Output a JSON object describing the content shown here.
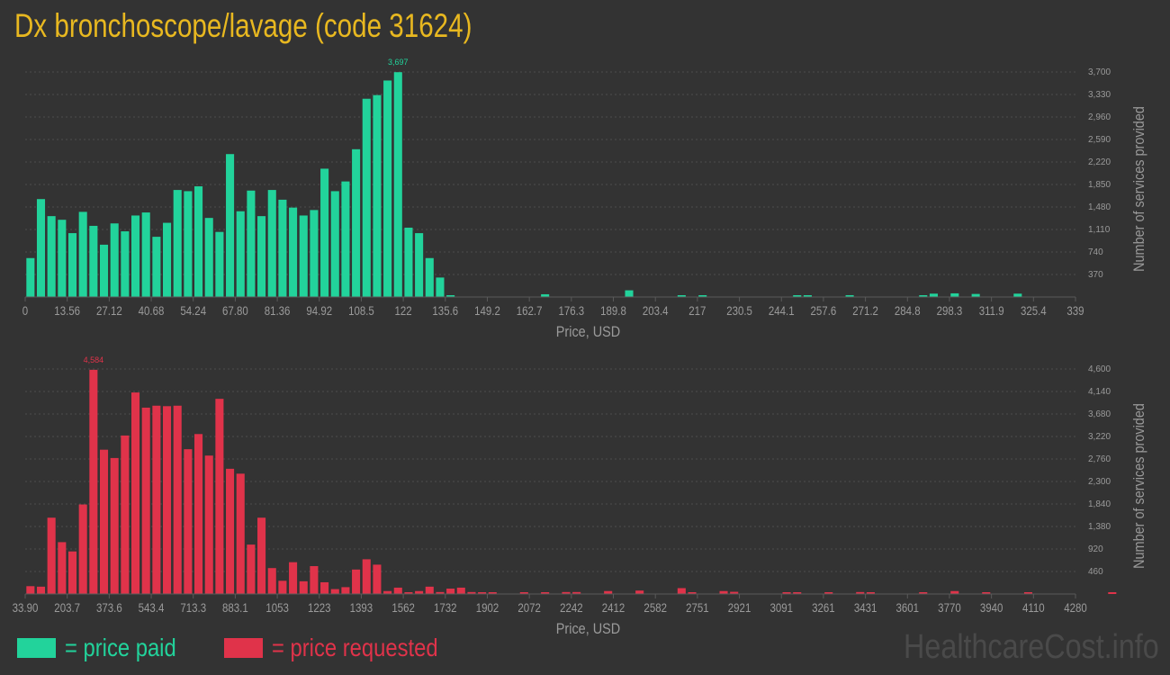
{
  "title": "Dx bronchoscope/lavage (code 31624)",
  "colors": {
    "paid": "#22d39b",
    "requested": "#e0334a",
    "title": "#e8b820",
    "axis_text": "#9a9a9a"
  },
  "legend": {
    "paid_label": "= price paid",
    "requested_label": "= price requested"
  },
  "watermark": "HealthcareCost.info",
  "chart_data": [
    {
      "type": "bar",
      "series_name": "price paid",
      "xlabel": "Price, USD",
      "ylabel": "Number of services provided",
      "xlim": [
        0,
        339
      ],
      "ylim": [
        0,
        3700
      ],
      "x_ticks": [
        "0",
        "13.56",
        "27.12",
        "40.68",
        "54.24",
        "67.80",
        "81.36",
        "94.92",
        "108.5",
        "122",
        "135.6",
        "149.2",
        "162.7",
        "176.3",
        "189.8",
        "203.4",
        "217",
        "230.5",
        "244.1",
        "257.6",
        "271.2",
        "284.8",
        "298.3",
        "311.9",
        "325.4",
        "339"
      ],
      "y_ticks": [
        "370",
        "740",
        "1,110",
        "1,480",
        "1,850",
        "2,220",
        "2,590",
        "2,960",
        "3,330",
        "3,700"
      ],
      "y_tick_values": [
        370,
        740,
        1110,
        1480,
        1850,
        2220,
        2590,
        2960,
        3330,
        3700
      ],
      "peak_label": "3,697",
      "grid": true,
      "bin_width": 3.39,
      "bins": [
        [
          0,
          640
        ],
        [
          1,
          1610
        ],
        [
          2,
          1330
        ],
        [
          3,
          1270
        ],
        [
          4,
          1050
        ],
        [
          5,
          1400
        ],
        [
          6,
          1170
        ],
        [
          7,
          860
        ],
        [
          8,
          1210
        ],
        [
          9,
          1080
        ],
        [
          10,
          1340
        ],
        [
          11,
          1390
        ],
        [
          12,
          990
        ],
        [
          13,
          1220
        ],
        [
          14,
          1760
        ],
        [
          15,
          1740
        ],
        [
          16,
          1820
        ],
        [
          17,
          1300
        ],
        [
          18,
          1070
        ],
        [
          19,
          2350
        ],
        [
          20,
          1410
        ],
        [
          21,
          1750
        ],
        [
          22,
          1330
        ],
        [
          23,
          1760
        ],
        [
          24,
          1600
        ],
        [
          25,
          1470
        ],
        [
          26,
          1340
        ],
        [
          27,
          1430
        ],
        [
          28,
          2110
        ],
        [
          29,
          1740
        ],
        [
          30,
          1900
        ],
        [
          31,
          2430
        ],
        [
          32,
          3260
        ],
        [
          33,
          3320
        ],
        [
          34,
          3560
        ],
        [
          35,
          3697
        ],
        [
          36,
          1140
        ],
        [
          37,
          1050
        ],
        [
          38,
          640
        ],
        [
          39,
          320
        ],
        [
          40,
          18
        ],
        [
          49,
          45
        ],
        [
          57,
          110
        ],
        [
          62,
          18
        ],
        [
          64,
          28
        ],
        [
          73,
          12
        ],
        [
          74,
          22
        ],
        [
          78,
          30
        ],
        [
          85,
          12
        ],
        [
          86,
          55
        ],
        [
          88,
          60
        ],
        [
          90,
          50
        ],
        [
          94,
          55
        ]
      ]
    },
    {
      "type": "bar",
      "series_name": "price requested",
      "xlabel": "Price, USD",
      "ylabel": "Number of services provided",
      "xlim": [
        33.9,
        4280
      ],
      "ylim": [
        0,
        4600
      ],
      "x_ticks": [
        "33.90",
        "203.7",
        "373.6",
        "543.4",
        "713.3",
        "883.1",
        "1053",
        "1223",
        "1393",
        "1562",
        "1732",
        "1902",
        "2072",
        "2242",
        "2412",
        "2582",
        "2751",
        "2921",
        "3091",
        "3261",
        "3431",
        "3601",
        "3770",
        "3940",
        "4110",
        "4280"
      ],
      "y_ticks": [
        "460",
        "920",
        "1,380",
        "1,840",
        "2,300",
        "2,760",
        "3,220",
        "3,680",
        "4,140",
        "4,600"
      ],
      "y_tick_values": [
        460,
        920,
        1380,
        1840,
        2300,
        2760,
        3220,
        3680,
        4140,
        4600
      ],
      "peak_label": "4,584",
      "grid": true,
      "bin_width": 42.46,
      "bins": [
        [
          0,
          160
        ],
        [
          1,
          150
        ],
        [
          2,
          1560
        ],
        [
          3,
          1060
        ],
        [
          4,
          870
        ],
        [
          5,
          1830
        ],
        [
          6,
          4584
        ],
        [
          7,
          2950
        ],
        [
          8,
          2780
        ],
        [
          9,
          3240
        ],
        [
          10,
          4120
        ],
        [
          11,
          3810
        ],
        [
          12,
          3850
        ],
        [
          13,
          3840
        ],
        [
          14,
          3850
        ],
        [
          15,
          2960
        ],
        [
          16,
          3270
        ],
        [
          17,
          2830
        ],
        [
          18,
          3990
        ],
        [
          19,
          2560
        ],
        [
          20,
          2460
        ],
        [
          21,
          1010
        ],
        [
          22,
          1560
        ],
        [
          23,
          530
        ],
        [
          24,
          270
        ],
        [
          25,
          650
        ],
        [
          26,
          260
        ],
        [
          27,
          570
        ],
        [
          28,
          240
        ],
        [
          29,
          100
        ],
        [
          30,
          140
        ],
        [
          31,
          500
        ],
        [
          32,
          710
        ],
        [
          33,
          600
        ],
        [
          34,
          60
        ],
        [
          35,
          130
        ],
        [
          36,
          30
        ],
        [
          37,
          60
        ],
        [
          38,
          150
        ],
        [
          39,
          40
        ],
        [
          40,
          110
        ],
        [
          41,
          130
        ],
        [
          42,
          40
        ],
        [
          43,
          20
        ],
        [
          44,
          30
        ],
        [
          47,
          20
        ],
        [
          49,
          20
        ],
        [
          51,
          40
        ],
        [
          52,
          40
        ],
        [
          55,
          60
        ],
        [
          58,
          70
        ],
        [
          62,
          120
        ],
        [
          63,
          15
        ],
        [
          66,
          60
        ],
        [
          67,
          45
        ],
        [
          72,
          15
        ],
        [
          73,
          30
        ],
        [
          76,
          30
        ],
        [
          79,
          40
        ],
        [
          80,
          25
        ],
        [
          85,
          30
        ],
        [
          88,
          60
        ],
        [
          91,
          30
        ],
        [
          95,
          20
        ],
        [
          103,
          20
        ],
        [
          110,
          30
        ],
        [
          112,
          20
        ],
        [
          117,
          40
        ],
        [
          121,
          20
        ],
        [
          130,
          25
        ],
        [
          132,
          15
        ],
        [
          136,
          20
        ],
        [
          140,
          15
        ],
        [
          144,
          30
        ],
        [
          145,
          15
        ],
        [
          149,
          60
        ],
        [
          150,
          40
        ],
        [
          162,
          15
        ],
        [
          164,
          20
        ],
        [
          180,
          20
        ],
        [
          181,
          15
        ],
        [
          192,
          40
        ],
        [
          200,
          20
        ],
        [
          201,
          10
        ],
        [
          211,
          15
        ],
        [
          214,
          30
        ],
        [
          217,
          20
        ],
        [
          226,
          35
        ],
        [
          233,
          20
        ],
        [
          234,
          20
        ],
        [
          240,
          20
        ],
        [
          244,
          20
        ],
        [
          248,
          25
        ],
        [
          252,
          15
        ],
        [
          257,
          20
        ],
        [
          262,
          25
        ],
        [
          266,
          20
        ],
        [
          270,
          15
        ],
        [
          275,
          20
        ],
        [
          279,
          20
        ],
        [
          283,
          25
        ],
        [
          287,
          20
        ],
        [
          292,
          20
        ],
        [
          296,
          20
        ]
      ]
    }
  ]
}
